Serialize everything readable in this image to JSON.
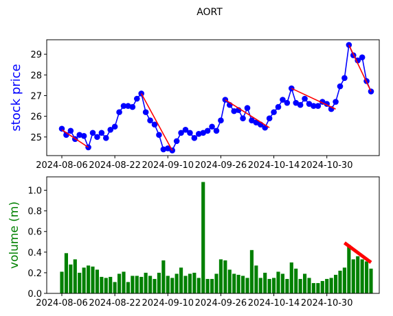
{
  "figure": {
    "title": "AORT"
  },
  "colors": {
    "price_line": "#0000ff",
    "trend_line": "#ff0000",
    "volume_bar": "#008000",
    "axis_text": "#000000"
  },
  "chart_data": [
    {
      "type": "line",
      "title": "AORT",
      "ylabel": "stock price",
      "ylabel_color": "#0000ff",
      "xlabel": "",
      "ylim": [
        24.1,
        29.7
      ],
      "yticks": [
        25,
        26,
        27,
        28,
        29
      ],
      "xtick_labels": [
        "2024-08-06",
        "2024-08-22",
        "2024-09-10",
        "2024-09-26",
        "2024-10-14",
        "2024-10-30"
      ],
      "grid": false,
      "series": [
        {
          "x": [
            "2024-08-06",
            "2024-08-07",
            "2024-08-08",
            "2024-08-09",
            "2024-08-12",
            "2024-08-13",
            "2024-08-14",
            "2024-08-15",
            "2024-08-16",
            "2024-08-19",
            "2024-08-20",
            "2024-08-21",
            "2024-08-22",
            "2024-08-23",
            "2024-08-26",
            "2024-08-27",
            "2024-08-28",
            "2024-08-29",
            "2024-08-30",
            "2024-09-03",
            "2024-09-04",
            "2024-09-05",
            "2024-09-06",
            "2024-09-09",
            "2024-09-10",
            "2024-09-11",
            "2024-09-12",
            "2024-09-13",
            "2024-09-16",
            "2024-09-17",
            "2024-09-18",
            "2024-09-19",
            "2024-09-20",
            "2024-09-23",
            "2024-09-24",
            "2024-09-25",
            "2024-09-26",
            "2024-09-27",
            "2024-09-30",
            "2024-10-01",
            "2024-10-02",
            "2024-10-03",
            "2024-10-04",
            "2024-10-07",
            "2024-10-08",
            "2024-10-09",
            "2024-10-10",
            "2024-10-11",
            "2024-10-14",
            "2024-10-15",
            "2024-10-16",
            "2024-10-17",
            "2024-10-18",
            "2024-10-21",
            "2024-10-22",
            "2024-10-23",
            "2024-10-24",
            "2024-10-25",
            "2024-10-28",
            "2024-10-29",
            "2024-10-30",
            "2024-10-31",
            "2024-11-01",
            "2024-11-04",
            "2024-11-05",
            "2024-11-06",
            "2024-11-07",
            "2024-11-08",
            "2024-11-11",
            "2024-11-12",
            "2024-11-13"
          ],
          "values": [
            25.4,
            25.1,
            25.3,
            24.9,
            25.1,
            25.05,
            24.5,
            25.2,
            25.0,
            25.2,
            24.95,
            25.35,
            25.5,
            26.2,
            26.5,
            26.5,
            26.45,
            26.85,
            27.1,
            26.2,
            25.8,
            25.6,
            25.1,
            24.4,
            24.45,
            24.35,
            24.8,
            25.2,
            25.35,
            25.2,
            24.95,
            25.15,
            25.2,
            25.3,
            25.5,
            25.3,
            25.8,
            26.8,
            26.55,
            26.25,
            26.3,
            25.9,
            26.4,
            25.8,
            25.7,
            25.6,
            25.45,
            25.9,
            26.2,
            26.45,
            26.8,
            26.65,
            27.35,
            26.65,
            26.55,
            26.85,
            26.6,
            26.5,
            26.5,
            26.7,
            26.6,
            26.35,
            26.7,
            27.45,
            27.85,
            29.45,
            28.95,
            28.7,
            28.85,
            27.7,
            27.2
          ]
        }
      ],
      "trend_segments": [
        {
          "x_start": "2024-08-06",
          "y_start": 25.35,
          "x_end": "2024-08-14",
          "y_end": 24.5
        },
        {
          "x_start": "2024-08-30",
          "y_start": 27.1,
          "x_end": "2024-09-11",
          "y_end": 24.35
        },
        {
          "x_start": "2024-09-27",
          "y_start": 26.8,
          "x_end": "2024-10-11",
          "y_end": 25.45
        },
        {
          "x_start": "2024-10-18",
          "y_start": 27.35,
          "x_end": "2024-11-01",
          "y_end": 26.35
        },
        {
          "x_start": "2024-11-06",
          "y_start": 29.45,
          "x_end": "2024-11-13",
          "y_end": 27.2
        }
      ]
    },
    {
      "type": "bar",
      "title": "",
      "ylabel": "volume (m)",
      "ylabel_color": "#008000",
      "xlabel": "",
      "ylim": [
        0,
        1.13
      ],
      "yticks": [
        0.0,
        0.2,
        0.4,
        0.6,
        0.8,
        1.0
      ],
      "xtick_labels": [
        "2024-08-06",
        "2024-08-22",
        "2024-09-10",
        "2024-09-26",
        "2024-10-14",
        "2024-10-30"
      ],
      "grid": false,
      "categories": [
        "2024-08-06",
        "2024-08-07",
        "2024-08-08",
        "2024-08-09",
        "2024-08-12",
        "2024-08-13",
        "2024-08-14",
        "2024-08-15",
        "2024-08-16",
        "2024-08-19",
        "2024-08-20",
        "2024-08-21",
        "2024-08-22",
        "2024-08-23",
        "2024-08-26",
        "2024-08-27",
        "2024-08-28",
        "2024-08-29",
        "2024-08-30",
        "2024-09-03",
        "2024-09-04",
        "2024-09-05",
        "2024-09-06",
        "2024-09-09",
        "2024-09-10",
        "2024-09-11",
        "2024-09-12",
        "2024-09-13",
        "2024-09-16",
        "2024-09-17",
        "2024-09-18",
        "2024-09-19",
        "2024-09-20",
        "2024-09-23",
        "2024-09-24",
        "2024-09-25",
        "2024-09-26",
        "2024-09-27",
        "2024-09-30",
        "2024-10-01",
        "2024-10-02",
        "2024-10-03",
        "2024-10-04",
        "2024-10-07",
        "2024-10-08",
        "2024-10-09",
        "2024-10-10",
        "2024-10-11",
        "2024-10-14",
        "2024-10-15",
        "2024-10-16",
        "2024-10-17",
        "2024-10-18",
        "2024-10-21",
        "2024-10-22",
        "2024-10-23",
        "2024-10-24",
        "2024-10-25",
        "2024-10-28",
        "2024-10-29",
        "2024-10-30",
        "2024-10-31",
        "2024-11-01",
        "2024-11-04",
        "2024-11-05",
        "2024-11-06",
        "2024-11-07",
        "2024-11-08",
        "2024-11-11",
        "2024-11-12",
        "2024-11-13"
      ],
      "values": [
        0.21,
        0.39,
        0.28,
        0.33,
        0.2,
        0.25,
        0.27,
        0.26,
        0.23,
        0.16,
        0.15,
        0.16,
        0.11,
        0.19,
        0.21,
        0.11,
        0.17,
        0.17,
        0.16,
        0.2,
        0.17,
        0.14,
        0.2,
        0.32,
        0.17,
        0.15,
        0.19,
        0.25,
        0.17,
        0.19,
        0.2,
        0.15,
        1.08,
        0.14,
        0.14,
        0.19,
        0.33,
        0.32,
        0.23,
        0.19,
        0.18,
        0.17,
        0.15,
        0.42,
        0.27,
        0.15,
        0.2,
        0.14,
        0.15,
        0.21,
        0.19,
        0.14,
        0.3,
        0.24,
        0.14,
        0.19,
        0.15,
        0.1,
        0.1,
        0.12,
        0.14,
        0.15,
        0.18,
        0.22,
        0.25,
        0.47,
        0.33,
        0.36,
        0.33,
        0.31,
        0.24
      ],
      "trend_segments": [
        {
          "x_start": "2024-11-05",
          "y_start": 0.49,
          "x_end": "2024-11-13",
          "y_end": 0.3
        }
      ]
    }
  ]
}
